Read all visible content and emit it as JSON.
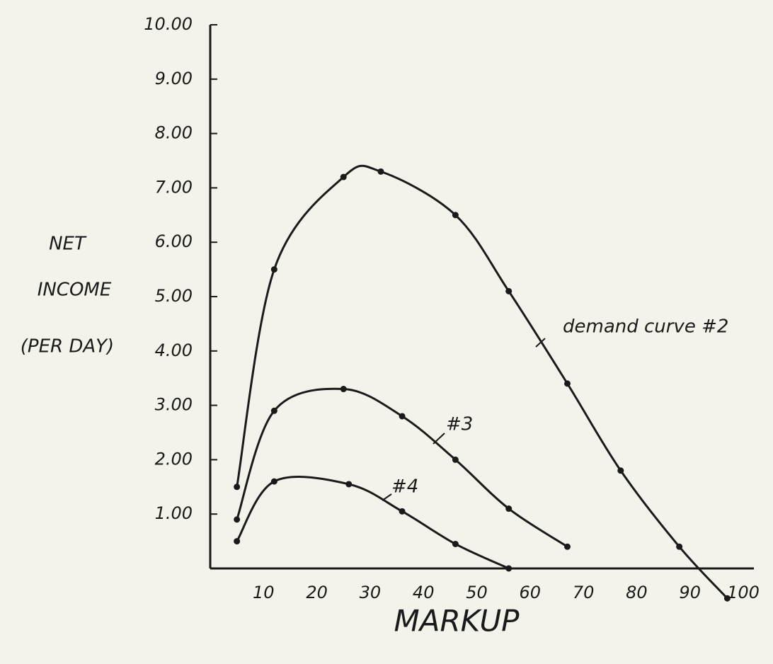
{
  "chart_data": {
    "type": "line",
    "xlabel": "MARKUP",
    "ylabel": [
      "NET",
      "INCOME",
      "(PER DAY)"
    ],
    "xlim": [
      0,
      100
    ],
    "ylim": [
      0,
      10
    ],
    "xticks": [
      10,
      20,
      30,
      40,
      50,
      60,
      70,
      80,
      90,
      100
    ],
    "yticks": [
      {
        "value": 1,
        "label": "1.00"
      },
      {
        "value": 2,
        "label": "2.00"
      },
      {
        "value": 3,
        "label": "3.00"
      },
      {
        "value": 4,
        "label": "4.00"
      },
      {
        "value": 5,
        "label": "5.00"
      },
      {
        "value": 6,
        "label": "6.00"
      },
      {
        "value": 7,
        "label": "7.00"
      },
      {
        "value": 8,
        "label": "8.00"
      },
      {
        "value": 9,
        "label": "9.00"
      },
      {
        "value": 10,
        "label": "10.00"
      }
    ],
    "color": "#1a1a1a",
    "series": [
      {
        "name": "demand curve #2",
        "x": [
          5,
          12,
          25,
          32,
          46,
          56,
          67,
          77,
          88,
          97
        ],
        "values": [
          1.5,
          5.5,
          7.2,
          7.3,
          6.5,
          5.1,
          3.4,
          1.8,
          0.4,
          -0.55
        ]
      },
      {
        "name": "#3",
        "x": [
          5,
          12,
          25,
          36,
          46,
          56,
          67
        ],
        "values": [
          0.9,
          2.9,
          3.3,
          2.8,
          2.0,
          1.1,
          0.4
        ]
      },
      {
        "name": "#4",
        "x": [
          5,
          12,
          26,
          36,
          46,
          56
        ],
        "values": [
          0.5,
          1.6,
          1.55,
          1.05,
          0.45,
          0
        ]
      }
    ]
  }
}
